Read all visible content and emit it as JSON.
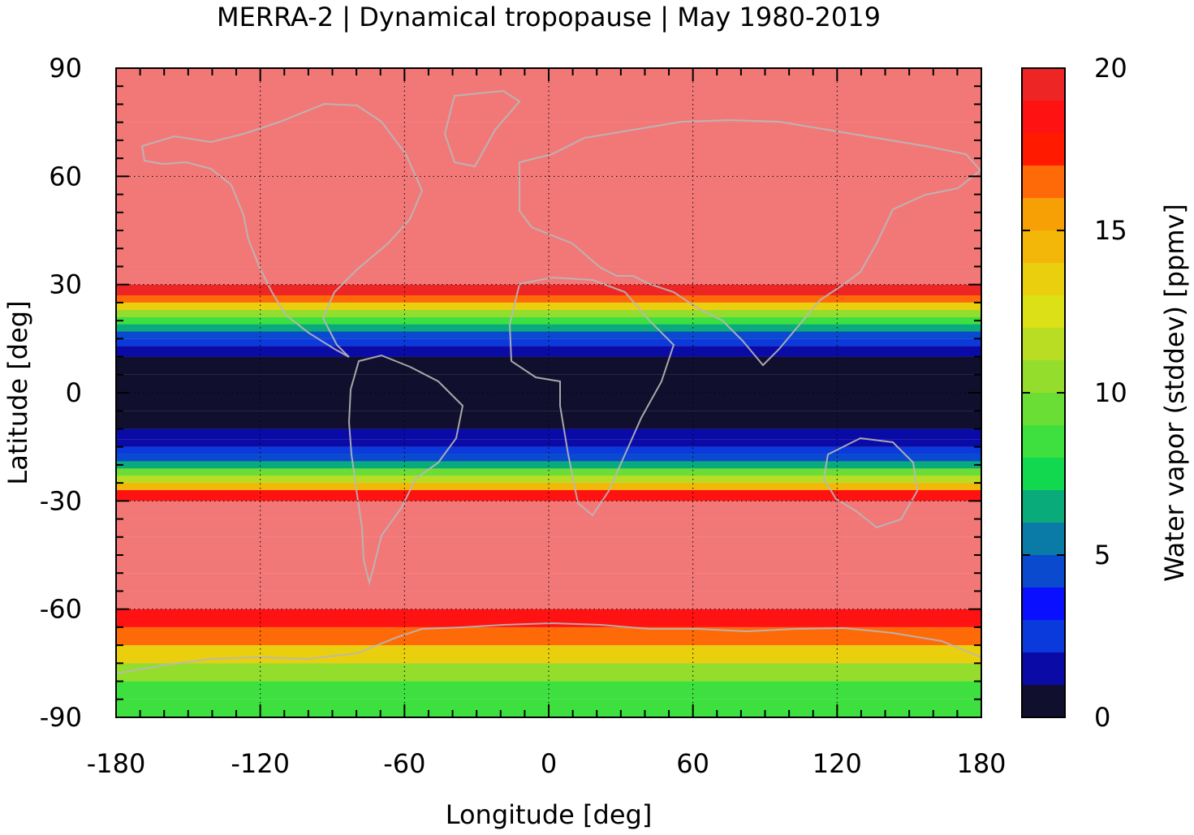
{
  "chart_data": {
    "type": "heatmap",
    "title": "MERRA-2 | Dynamical tropopause | May 1980-2019",
    "xlabel": "Longitude [deg]",
    "ylabel": "Latitude [deg]",
    "colorbar_label": "Water vapor (stddev) [ppmv]",
    "xlim": [
      -180,
      180
    ],
    "ylim": [
      -90,
      90
    ],
    "clim": [
      0,
      20
    ],
    "x_ticks": [
      -180,
      -120,
      -60,
      0,
      60,
      120,
      180
    ],
    "x_tick_labels": [
      "-180",
      "-120",
      "-60",
      "0",
      "60",
      "120",
      "180"
    ],
    "y_ticks": [
      -90,
      -60,
      -30,
      0,
      30,
      60,
      90
    ],
    "y_tick_labels": [
      "-90",
      "-60",
      "-30",
      "0",
      "30",
      "60",
      "90"
    ],
    "colorbar_ticks": [
      0,
      5,
      10,
      15,
      20
    ],
    "colorbar_tick_labels": [
      "0",
      "5",
      "10",
      "15",
      "20"
    ],
    "colorbar_step": 1,
    "grid": true,
    "colormap": [
      "#10102e",
      "#0a0aa6",
      "#0a3adc",
      "#0a10ff",
      "#0a4acf",
      "#0a7aa6",
      "#0aab7a",
      "#12d850",
      "#3ee040",
      "#6ade35",
      "#94dd2c",
      "#b9dd22",
      "#dce017",
      "#e9cf0d",
      "#f2b708",
      "#f7a005",
      "#fe6a08",
      "#ff1a00",
      "#ff1212",
      "#ee2525",
      "#f27878",
      "#ffcccc"
    ],
    "latitude_profile": {
      "latitude": [
        -90,
        -85,
        -80,
        -75,
        -70,
        -65,
        -60,
        -55,
        -50,
        -45,
        -40,
        -35,
        -30,
        -27,
        -25,
        -23,
        -21,
        -19,
        -17,
        -15,
        -13,
        -10,
        -5,
        0,
        5,
        10,
        13,
        15,
        17,
        19,
        21,
        23,
        25,
        27,
        30,
        35,
        45,
        60,
        75,
        90
      ],
      "water_vapor_stddev": [
        8,
        8,
        9,
        11,
        15,
        17.5,
        20,
        20,
        20,
        20,
        20,
        20,
        20,
        16,
        13,
        10,
        8,
        5,
        3,
        2,
        1.5,
        0.5,
        0.3,
        0.3,
        0.3,
        1,
        2,
        3,
        5,
        7,
        9,
        12,
        15,
        18,
        20,
        20,
        20,
        20,
        20,
        20
      ]
    }
  }
}
